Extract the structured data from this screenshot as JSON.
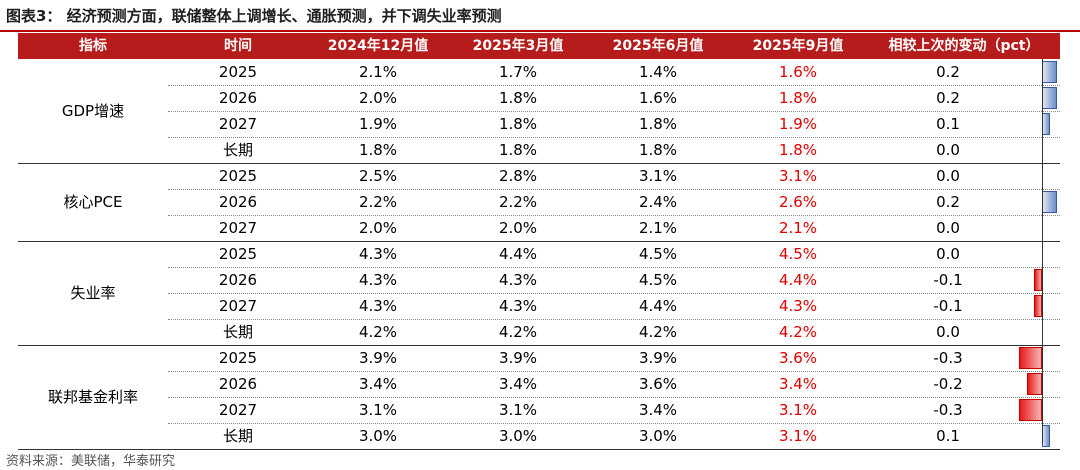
{
  "title": "图表3： 经济预测方面，联储整体上调增长、通胀预测，并下调失业率预测",
  "headers": {
    "indicator": "指标",
    "time": "时间",
    "dec2024": "2024年12月值",
    "mar2025": "2025年3月值",
    "jun2025": "2025年6月值",
    "sep2025": "2025年9月值",
    "change": "相较上次的变动（pct）"
  },
  "groups": [
    {
      "label": "GDP增速",
      "rows": [
        {
          "time": "2025",
          "dec2024": "2.1%",
          "mar2025": "1.7%",
          "jun2025": "1.4%",
          "sep2025": "1.6%",
          "change": "0.2",
          "change_value": 0.2
        },
        {
          "time": "2026",
          "dec2024": "2.0%",
          "mar2025": "1.8%",
          "jun2025": "1.6%",
          "sep2025": "1.8%",
          "change": "0.2",
          "change_value": 0.2
        },
        {
          "time": "2027",
          "dec2024": "1.9%",
          "mar2025": "1.8%",
          "jun2025": "1.8%",
          "sep2025": "1.9%",
          "change": "0.1",
          "change_value": 0.1
        },
        {
          "time": "长期",
          "dec2024": "1.8%",
          "mar2025": "1.8%",
          "jun2025": "1.8%",
          "sep2025": "1.8%",
          "change": "0.0",
          "change_value": 0.0
        }
      ]
    },
    {
      "label": "核心PCE",
      "rows": [
        {
          "time": "2025",
          "dec2024": "2.5%",
          "mar2025": "2.8%",
          "jun2025": "3.1%",
          "sep2025": "3.1%",
          "change": "0.0",
          "change_value": 0.0
        },
        {
          "time": "2026",
          "dec2024": "2.2%",
          "mar2025": "2.2%",
          "jun2025": "2.4%",
          "sep2025": "2.6%",
          "change": "0.2",
          "change_value": 0.2
        },
        {
          "time": "2027",
          "dec2024": "2.0%",
          "mar2025": "2.0%",
          "jun2025": "2.1%",
          "sep2025": "2.1%",
          "change": "0.0",
          "change_value": 0.0
        }
      ]
    },
    {
      "label": "失业率",
      "rows": [
        {
          "time": "2025",
          "dec2024": "4.3%",
          "mar2025": "4.4%",
          "jun2025": "4.5%",
          "sep2025": "4.5%",
          "change": "0.0",
          "change_value": 0.0
        },
        {
          "time": "2026",
          "dec2024": "4.3%",
          "mar2025": "4.3%",
          "jun2025": "4.5%",
          "sep2025": "4.4%",
          "change": "-0.1",
          "change_value": -0.1
        },
        {
          "time": "2027",
          "dec2024": "4.3%",
          "mar2025": "4.3%",
          "jun2025": "4.4%",
          "sep2025": "4.3%",
          "change": "-0.1",
          "change_value": -0.1
        },
        {
          "time": "长期",
          "dec2024": "4.2%",
          "mar2025": "4.2%",
          "jun2025": "4.2%",
          "sep2025": "4.2%",
          "change": "0.0",
          "change_value": 0.0
        }
      ]
    },
    {
      "label": "联邦基金利率",
      "rows": [
        {
          "time": "2025",
          "dec2024": "3.9%",
          "mar2025": "3.9%",
          "jun2025": "3.9%",
          "sep2025": "3.6%",
          "change": "-0.3",
          "change_value": -0.3
        },
        {
          "time": "2026",
          "dec2024": "3.4%",
          "mar2025": "3.4%",
          "jun2025": "3.6%",
          "sep2025": "3.4%",
          "change": "-0.2",
          "change_value": -0.2
        },
        {
          "time": "2027",
          "dec2024": "3.1%",
          "mar2025": "3.1%",
          "jun2025": "3.4%",
          "sep2025": "3.1%",
          "change": "-0.3",
          "change_value": -0.3
        },
        {
          "time": "长期",
          "dec2024": "3.0%",
          "mar2025": "3.0%",
          "jun2025": "3.0%",
          "sep2025": "3.1%",
          "change": "0.1",
          "change_value": 0.1
        }
      ]
    }
  ],
  "source": "资料来源：美联储，华泰研究",
  "colors": {
    "header_bg": "#b71c1c",
    "header_text": "#ffffff",
    "sep2025_text": "#e00000",
    "positive_bar": "#6e8fc8",
    "negative_bar": "#e81a1a"
  }
}
